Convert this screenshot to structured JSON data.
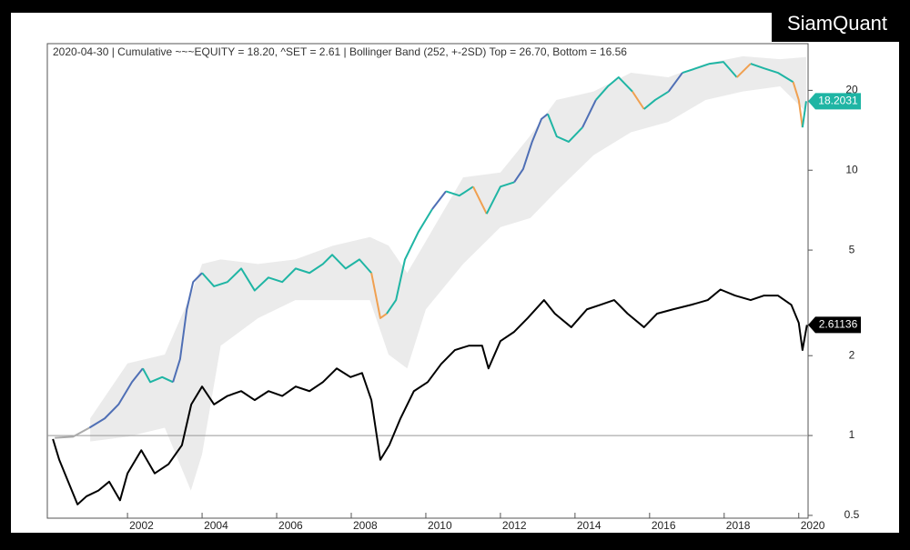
{
  "chart_data": {
    "type": "line",
    "title": "2020-04-30   |   Cumulative ~~~EQUITY = 18.20, ^SET = 2.61   |   Bollinger Band (252, +-2SD)   Top = 26.70, Bottom = 16.56",
    "watermark": "SiamQuant",
    "yscale": "log",
    "xlim": [
      1999.85,
      2020.25
    ],
    "ylim": [
      0.488,
      30
    ],
    "xticks": [
      2002,
      2004,
      2006,
      2008,
      2010,
      2012,
      2014,
      2016,
      2018,
      2020
    ],
    "yticks": [
      0.5,
      1,
      2,
      5,
      10,
      20
    ],
    "reference_line": 1,
    "band": {
      "color": "#ebebeb",
      "x": [
        2001.0,
        2002.0,
        2003.0,
        2003.7,
        2004.0,
        2004.5,
        2005.5,
        2006.5,
        2007.5,
        2008.5,
        2009.0,
        2009.5,
        2010.0,
        2011.0,
        2012.0,
        2012.8,
        2013.5,
        2014.5,
        2015.5,
        2016.5,
        2017.5,
        2018.5,
        2019.5,
        2020.2
      ],
      "upper": [
        1.16,
        1.87,
        2.02,
        3.4,
        4.43,
        4.61,
        4.43,
        4.61,
        5.19,
        5.6,
        5.2,
        4.1,
        5.4,
        9.4,
        9.8,
        13.5,
        18.4,
        19.8,
        23.3,
        22.4,
        25.2,
        26.9,
        26.2,
        26.7
      ],
      "lower": [
        0.95,
        0.99,
        1.07,
        0.62,
        0.85,
        2.18,
        2.77,
        3.24,
        3.24,
        3.24,
        2.02,
        1.79,
        2.99,
        4.43,
        6.1,
        6.6,
        8.33,
        11.4,
        13.9,
        15.2,
        18.4,
        19.8,
        20.7,
        16.56
      ]
    },
    "series": [
      {
        "color": "#1fb5a4",
        "x": [
          2000.05,
          2000.54,
          2000.98,
          2001.39,
          2001.76,
          2002.12,
          2002.41,
          2002.61,
          2002.93,
          2003.22,
          2003.41,
          2003.59,
          2003.76,
          2004.0,
          2004.32,
          2004.68,
          2005.05,
          2005.41,
          2005.78,
          2006.15,
          2006.51,
          2006.88,
          2007.24,
          2007.49,
          2007.85,
          2008.22,
          2008.54,
          2008.78,
          2008.95,
          2009.2,
          2009.44,
          2009.8,
          2010.17,
          2010.54,
          2010.9,
          2011.27,
          2011.63,
          2012.0,
          2012.37,
          2012.61,
          2012.85,
          2013.1,
          2013.27,
          2013.51,
          2013.83,
          2014.2,
          2014.56,
          2014.88,
          2015.17,
          2015.54,
          2015.85,
          2016.15,
          2016.51,
          2016.88,
          2017.24,
          2017.61,
          2017.98,
          2018.34,
          2018.71,
          2019.07,
          2019.44,
          2019.85,
          2020.0,
          2020.1,
          2020.2
        ],
        "values": [
          0.98,
          0.99,
          1.07,
          1.16,
          1.31,
          1.59,
          1.79,
          1.59,
          1.66,
          1.59,
          1.94,
          2.99,
          3.79,
          4.1,
          3.65,
          3.79,
          4.26,
          3.52,
          3.94,
          3.79,
          4.26,
          4.1,
          4.43,
          4.8,
          4.26,
          4.61,
          4.1,
          2.77,
          2.88,
          3.24,
          4.61,
          5.85,
          7.13,
          8.33,
          8.02,
          8.67,
          6.85,
          8.67,
          9.01,
          10.1,
          12.8,
          15.6,
          16.3,
          13.4,
          12.8,
          14.5,
          18.4,
          20.7,
          22.4,
          19.8,
          17.0,
          18.4,
          19.8,
          23.3,
          24.2,
          25.2,
          25.6,
          22.4,
          25.2,
          24.2,
          23.3,
          21.5,
          18.4,
          14.5,
          18.2031
        ],
        "point_colors": [
          "#aaaaaa",
          "#aaaaaa",
          "#aaaaaa",
          "#4f6fb5",
          "#4f6fb5",
          "#4f6fb5",
          "#4f6fb5",
          "#1fb5a4",
          "#1fb5a4",
          "#1fb5a4",
          "#4f6fb5",
          "#4f6fb5",
          "#4f6fb5",
          "#4f6fb5",
          "#1fb5a4",
          "#1fb5a4",
          "#1fb5a4",
          "#1fb5a4",
          "#1fb5a4",
          "#1fb5a4",
          "#1fb5a4",
          "#1fb5a4",
          "#1fb5a4",
          "#1fb5a4",
          "#1fb5a4",
          "#1fb5a4",
          "#1fb5a4",
          "#f0a050",
          "#f0a050",
          "#1fb5a4",
          "#1fb5a4",
          "#1fb5a4",
          "#1fb5a4",
          "#4f6fb5",
          "#1fb5a4",
          "#1fb5a4",
          "#f0a050",
          "#1fb5a4",
          "#1fb5a4",
          "#4f6fb5",
          "#4f6fb5",
          "#4f6fb5",
          "#4f6fb5",
          "#1fb5a4",
          "#1fb5a4",
          "#1fb5a4",
          "#4f6fb5",
          "#1fb5a4",
          "#1fb5a4",
          "#1fb5a4",
          "#f0a050",
          "#1fb5a4",
          "#1fb5a4",
          "#4f6fb5",
          "#1fb5a4",
          "#1fb5a4",
          "#1fb5a4",
          "#1fb5a4",
          "#f0a050",
          "#1fb5a4",
          "#1fb5a4",
          "#1fb5a4",
          "#f0a050",
          "#f0a050",
          "#1fb5a4"
        ]
      },
      {
        "color": "#000000",
        "x": [
          2000.0,
          2000.17,
          2000.41,
          2000.66,
          2000.9,
          2001.22,
          2001.51,
          2001.8,
          2002.0,
          2002.37,
          2002.73,
          2003.1,
          2003.46,
          2003.71,
          2004.0,
          2004.32,
          2004.68,
          2005.05,
          2005.41,
          2005.78,
          2006.15,
          2006.51,
          2006.88,
          2007.24,
          2007.61,
          2007.98,
          2008.29,
          2008.54,
          2008.78,
          2009.02,
          2009.32,
          2009.68,
          2010.05,
          2010.41,
          2010.78,
          2011.15,
          2011.51,
          2011.68,
          2012.0,
          2012.37,
          2012.73,
          2013.17,
          2013.46,
          2013.9,
          2014.32,
          2014.68,
          2015.05,
          2015.41,
          2015.85,
          2016.2,
          2016.63,
          2017.12,
          2017.56,
          2017.9,
          2018.29,
          2018.71,
          2019.07,
          2019.44,
          2019.8,
          2020.0,
          2020.1,
          2020.22
        ],
        "values": [
          0.97,
          0.81,
          0.67,
          0.55,
          0.59,
          0.62,
          0.67,
          0.57,
          0.72,
          0.88,
          0.72,
          0.78,
          0.92,
          1.31,
          1.53,
          1.31,
          1.41,
          1.47,
          1.36,
          1.47,
          1.41,
          1.53,
          1.47,
          1.59,
          1.79,
          1.66,
          1.72,
          1.36,
          0.81,
          0.92,
          1.16,
          1.47,
          1.59,
          1.86,
          2.1,
          2.18,
          2.18,
          1.79,
          2.27,
          2.46,
          2.77,
          3.24,
          2.88,
          2.56,
          2.99,
          3.11,
          3.24,
          2.88,
          2.56,
          2.88,
          2.99,
          3.11,
          3.24,
          3.55,
          3.37,
          3.24,
          3.37,
          3.37,
          3.11,
          2.66,
          2.1,
          2.61136
        ]
      }
    ]
  }
}
